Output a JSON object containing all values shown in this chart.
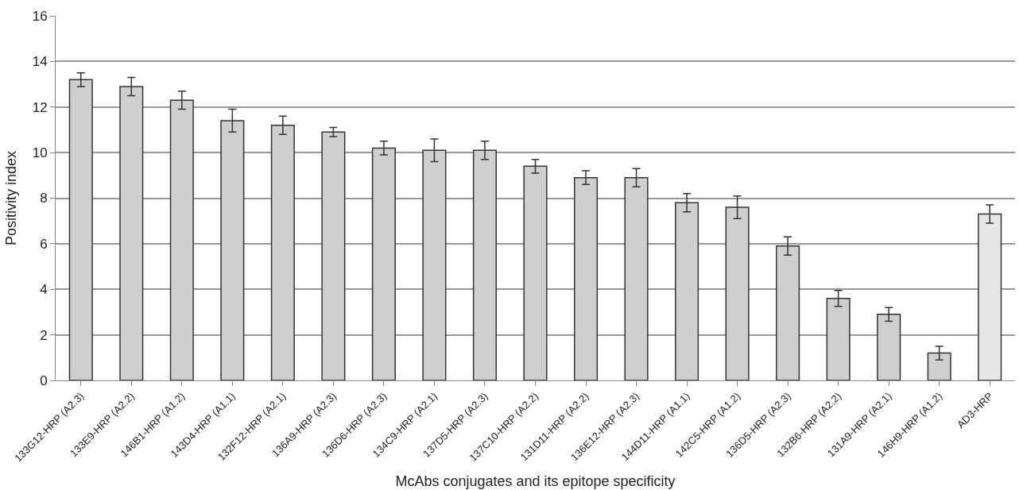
{
  "chart_data": {
    "type": "bar",
    "xlabel": "McAbs conjugates and its epitope specificity",
    "ylabel": "Positivity index",
    "categories": [
      "133G12-HRP (A2.3)",
      "133E9-HRP (A2.2)",
      "146B1-HRP (A1.2)",
      "143D4-HRP (A1.1)",
      "132F12-HRP (A2.1)",
      "136A9-HRP (A2.3)",
      "136D6-HRP (A2.3)",
      "134C9-HRP (A2.1)",
      "137D5-HRP (A2.3)",
      "137C10-HRP (A2.2)",
      "131D11-HRP (A2.2)",
      "136E12-HRP (A2.3)",
      "144D11-HRP (A1.1)",
      "142C5-HRP (A1.2)",
      "136D5-HRP (A2.3)",
      "132B6-HRP (A2.2)",
      "131A9-HRP (A2.1)",
      "146H9-HRP (A1.2)",
      "AD3-HRP"
    ],
    "values": [
      13.2,
      12.9,
      12.3,
      11.4,
      11.2,
      10.9,
      10.2,
      10.1,
      10.1,
      9.4,
      8.9,
      8.9,
      7.8,
      7.6,
      5.9,
      3.6,
      2.9,
      1.2,
      7.3
    ],
    "errors": [
      0.3,
      0.4,
      0.4,
      0.5,
      0.4,
      0.2,
      0.3,
      0.5,
      0.4,
      0.3,
      0.3,
      0.4,
      0.4,
      0.5,
      0.4,
      0.35,
      0.3,
      0.3,
      0.4
    ],
    "colors": [
      "#cfcfd0",
      "#cfcfd0",
      "#cfcfd0",
      "#cfcfd0",
      "#cfcfd0",
      "#cfcfd0",
      "#cfcfd0",
      "#cfcfd0",
      "#cfcfd0",
      "#cfcfd0",
      "#cfcfd0",
      "#cfcfd0",
      "#cfcfd0",
      "#cfcfd0",
      "#cfcfd0",
      "#cfcfd0",
      "#cfcfd0",
      "#cfcfd0",
      "#e6e6e6"
    ],
    "ylim": [
      0,
      16
    ],
    "yticks": [
      0,
      2,
      4,
      6,
      8,
      10,
      12,
      14,
      16
    ],
    "grid": "y",
    "legend": false
  }
}
